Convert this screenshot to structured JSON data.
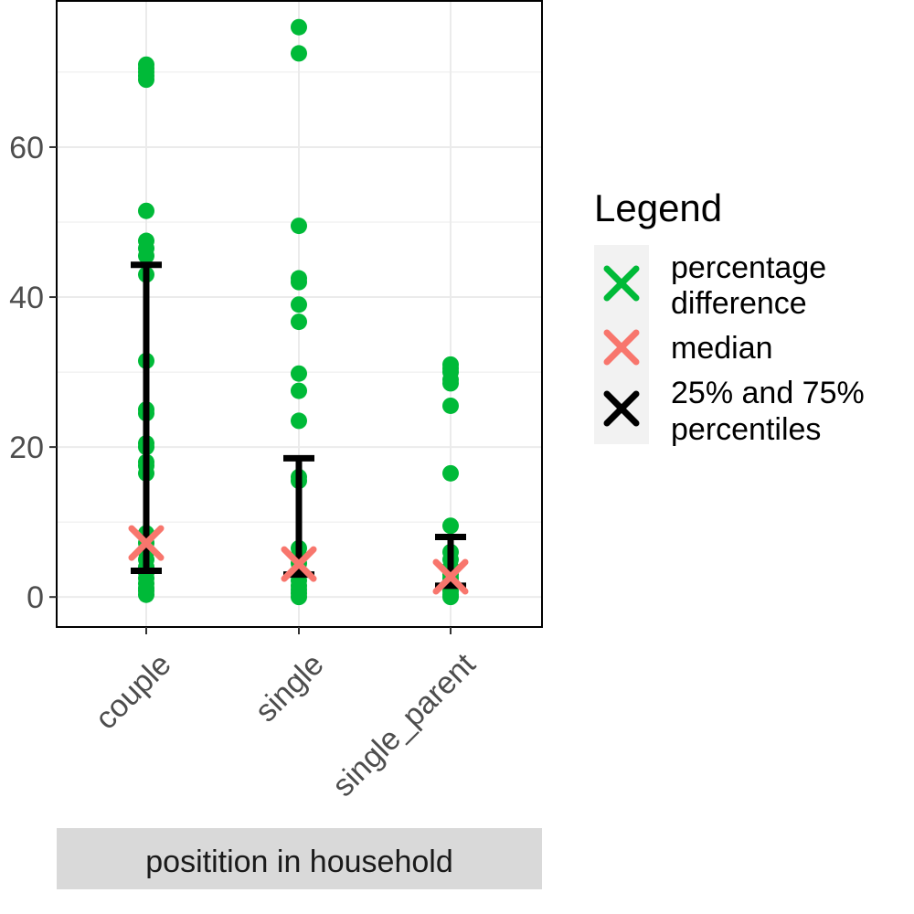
{
  "chart_data": {
    "type": "scatter",
    "categories": [
      "couple",
      "single",
      "single_parent"
    ],
    "ylim": [
      -4,
      79.5
    ],
    "y_ticks": [
      0,
      20,
      40,
      60
    ],
    "y_tick_labels": [
      "0",
      "20",
      "40",
      "60"
    ],
    "grid": true,
    "facet_strip_label": "positition in household",
    "legend": {
      "title": "Legend",
      "position": "right",
      "items": [
        {
          "label_lines": [
            "percentage",
            "difference"
          ],
          "color": "#00ba38"
        },
        {
          "label_lines": [
            "median"
          ],
          "color": "#f8766d"
        },
        {
          "label_lines": [
            "25% and 75%",
            "percentiles"
          ],
          "color": "#000000"
        }
      ]
    },
    "series": [
      {
        "category": "couple",
        "points": [
          0.3,
          0.8,
          1.2,
          1.8,
          2.5,
          3.2,
          4.0,
          5.0,
          6.0,
          7.2,
          8.5,
          16.5,
          17.5,
          18.0,
          20.0,
          20.5,
          24.5,
          25.0,
          31.5,
          43.0,
          45.5,
          46.5,
          47.5,
          51.5,
          69.0,
          69.5,
          70.0,
          70.5,
          71.0
        ],
        "median": 7.2,
        "p25": 3.5,
        "p75": 44.3
      },
      {
        "category": "single",
        "points": [
          0.0,
          0.5,
          1.0,
          1.5,
          2.2,
          3.0,
          3.5,
          4.5,
          5.5,
          6.5,
          15.5,
          16.0,
          23.5,
          27.5,
          29.8,
          36.7,
          39.0,
          42.0,
          42.5,
          49.5,
          72.5,
          76.0
        ],
        "median": 4.4,
        "p25": 3.0,
        "p75": 18.5
      },
      {
        "category": "single_parent",
        "points": [
          0.0,
          0.3,
          0.8,
          1.5,
          2.0,
          2.5,
          3.0,
          4.0,
          5.0,
          6.0,
          9.5,
          16.5,
          25.5,
          28.5,
          29.0,
          30.0,
          30.5,
          31.0
        ],
        "median": 2.7,
        "p25": 1.5,
        "p75": 8.0
      }
    ]
  },
  "colors": {
    "points": "#00ba38",
    "median": "#f8766d",
    "percentile": "#000000",
    "grid": "#ebebeb",
    "strip_bg": "#d9d9d9",
    "legend_key_bg": "#f2f2f2"
  }
}
